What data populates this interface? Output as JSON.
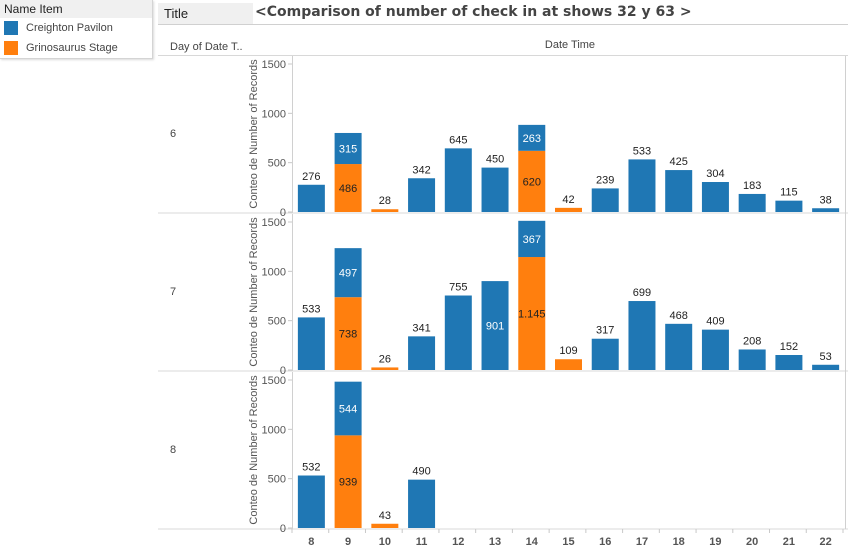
{
  "legend": {
    "title": "Name Item",
    "items": [
      {
        "label": "Creighton Pavilon",
        "color": "#1f77b4"
      },
      {
        "label": "Grinosaurus Stage",
        "color": "#ff7f0e"
      }
    ]
  },
  "title_bar": {
    "label": "Title",
    "text": "<Comparison of number of check in  at shows 32 y 63 >"
  },
  "headers": {
    "row_dimension": "Day of Date T..",
    "column_dimension": "Date Time"
  },
  "chart_data": {
    "type": "bar",
    "stacked": true,
    "title": "<Comparison of number of check in  at shows 32 y 63 >",
    "xlabel": "Date Time",
    "ylabel": "Conteo de Number of Records",
    "row_dimension": "Day of Date T..",
    "ylim": [
      0,
      1500
    ],
    "yticks": [
      0,
      500,
      1000,
      1500
    ],
    "categories": [
      "8",
      "9",
      "10",
      "11",
      "12",
      "13",
      "14",
      "15",
      "16",
      "17",
      "18",
      "19",
      "20",
      "21",
      "22"
    ],
    "series_colors": {
      "Creighton Pavilon": "#1f77b4",
      "Grinosaurus Stage": "#ff7f0e"
    },
    "panels": [
      {
        "row": "6",
        "series": [
          {
            "name": "Grinosaurus Stage",
            "values": [
              null,
              486,
              28,
              null,
              null,
              null,
              620,
              42,
              null,
              null,
              null,
              null,
              null,
              null,
              null
            ],
            "labels": [
              null,
              "486",
              "28",
              null,
              null,
              null,
              "620",
              "42",
              null,
              null,
              null,
              null,
              null,
              null,
              null
            ]
          },
          {
            "name": "Creighton Pavilon",
            "values": [
              276,
              315,
              null,
              342,
              645,
              450,
              263,
              null,
              239,
              533,
              425,
              304,
              183,
              115,
              38
            ],
            "labels": [
              "276",
              "315",
              null,
              "342",
              "645",
              "450",
              "263",
              null,
              "239",
              "533",
              "425",
              "304",
              "183",
              "115",
              "38"
            ]
          }
        ]
      },
      {
        "row": "7",
        "series": [
          {
            "name": "Grinosaurus Stage",
            "values": [
              null,
              738,
              26,
              null,
              null,
              null,
              1145,
              109,
              null,
              null,
              null,
              null,
              null,
              null,
              null
            ],
            "labels": [
              null,
              "738",
              "26",
              null,
              null,
              null,
              "1.145",
              "109",
              null,
              null,
              null,
              null,
              null,
              null,
              null
            ]
          },
          {
            "name": "Creighton Pavilon",
            "values": [
              533,
              497,
              null,
              341,
              755,
              901,
              367,
              null,
              317,
              699,
              468,
              409,
              208,
              152,
              53
            ],
            "labels": [
              "533",
              "497",
              null,
              "341",
              "755",
              "901",
              "367",
              null,
              "317",
              "699",
              "468",
              "409",
              "208",
              "152",
              "53"
            ]
          }
        ]
      },
      {
        "row": "8",
        "series": [
          {
            "name": "Grinosaurus Stage",
            "values": [
              null,
              939,
              43,
              null,
              null,
              null,
              null,
              null,
              null,
              null,
              null,
              null,
              null,
              null,
              null
            ],
            "labels": [
              null,
              "939",
              "43",
              null,
              null,
              null,
              null,
              null,
              null,
              null,
              null,
              null,
              null,
              null,
              null
            ]
          },
          {
            "name": "Creighton Pavilon",
            "values": [
              532,
              544,
              null,
              490,
              null,
              null,
              null,
              null,
              null,
              null,
              null,
              null,
              null,
              null,
              null
            ],
            "labels": [
              "532",
              "544",
              null,
              "490",
              null,
              null,
              null,
              null,
              null,
              null,
              null,
              null,
              null,
              null,
              null
            ]
          }
        ]
      }
    ],
    "grid": false,
    "legend": "top-left"
  }
}
